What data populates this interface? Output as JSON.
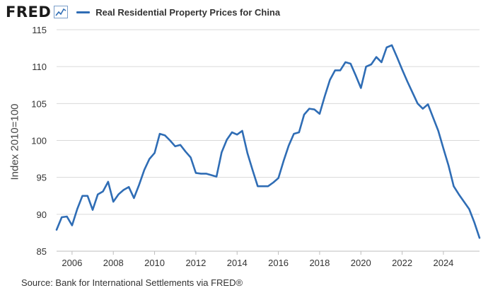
{
  "header": {
    "logo_text": "FRED",
    "logo_icon": "trend-chart-icon"
  },
  "footer": {
    "source": "Source: Bank for International Settlements via FRED®"
  },
  "colors": {
    "series_line": "#2f6db5",
    "gridline": "#d9d9d9",
    "axis_text": "#333333"
  },
  "chart_data": {
    "type": "line",
    "title": "",
    "xlabel": "",
    "ylabel": "Index 2010=100",
    "xlim": [
      2005.25,
      2025.75
    ],
    "ylim": [
      85,
      115
    ],
    "yticks": [
      85,
      90,
      95,
      100,
      105,
      110,
      115
    ],
    "xticks": [
      2006,
      2008,
      2010,
      2012,
      2014,
      2016,
      2018,
      2020,
      2022,
      2024
    ],
    "grid": "horizontal",
    "legend_position": "top",
    "series": [
      {
        "name": "Real Residential Property Prices for China",
        "x": [
          2005.25,
          2005.5,
          2005.75,
          2006.0,
          2006.25,
          2006.5,
          2006.75,
          2007.0,
          2007.25,
          2007.5,
          2007.75,
          2008.0,
          2008.25,
          2008.5,
          2008.75,
          2009.0,
          2009.25,
          2009.5,
          2009.75,
          2010.0,
          2010.25,
          2010.5,
          2010.75,
          2011.0,
          2011.25,
          2011.5,
          2011.75,
          2012.0,
          2012.25,
          2012.5,
          2012.75,
          2013.0,
          2013.25,
          2013.5,
          2013.75,
          2014.0,
          2014.25,
          2014.5,
          2014.75,
          2015.0,
          2015.25,
          2015.5,
          2015.75,
          2016.0,
          2016.25,
          2016.5,
          2016.75,
          2017.0,
          2017.25,
          2017.5,
          2017.75,
          2018.0,
          2018.25,
          2018.5,
          2018.75,
          2019.0,
          2019.25,
          2019.5,
          2019.75,
          2020.0,
          2020.25,
          2020.5,
          2020.75,
          2021.0,
          2021.25,
          2021.5,
          2021.75,
          2022.0,
          2022.25,
          2022.5,
          2022.75,
          2023.0,
          2023.25,
          2023.5,
          2023.75,
          2024.0,
          2024.25,
          2024.5,
          2024.75,
          2025.0,
          2025.25,
          2025.5,
          2025.75
        ],
        "values": [
          87.9,
          89.6,
          89.7,
          88.5,
          90.7,
          92.5,
          92.5,
          90.6,
          92.7,
          93.1,
          94.4,
          91.7,
          92.7,
          93.3,
          93.7,
          92.2,
          94.0,
          96.0,
          97.5,
          98.3,
          100.9,
          100.7,
          100.0,
          99.2,
          99.4,
          98.5,
          97.7,
          95.6,
          95.5,
          95.5,
          95.3,
          95.1,
          98.4,
          100.1,
          101.1,
          100.8,
          101.3,
          98.3,
          96.0,
          93.8,
          93.8,
          93.8,
          94.3,
          94.9,
          97.2,
          99.3,
          100.9,
          101.1,
          103.5,
          104.3,
          104.2,
          103.6,
          106.0,
          108.2,
          109.5,
          109.5,
          110.6,
          110.4,
          108.8,
          107.1,
          110.0,
          110.3,
          111.3,
          110.6,
          112.6,
          112.9,
          111.3,
          109.6,
          108.0,
          106.5,
          105.0,
          104.3,
          104.9,
          103.1,
          101.3,
          98.9,
          96.6,
          93.8,
          92.7,
          91.7,
          90.7,
          88.9,
          86.8
        ]
      }
    ]
  }
}
